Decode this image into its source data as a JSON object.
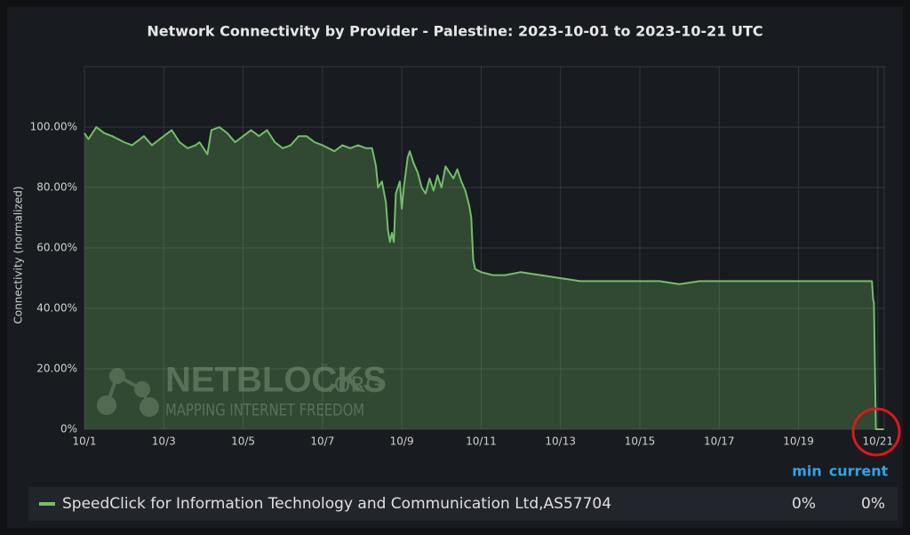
{
  "chart_data": {
    "type": "area",
    "title": "Network Connectivity by Provider - Palestine: 2023-10-01 to 2023-10-21 UTC",
    "y_label": "Connectivity (normalized)",
    "watermark": {
      "name": "NETBLOCKS",
      "suffix": ".ORG",
      "mark": "™",
      "tagline": "MAPPING INTERNET FREEDOM"
    },
    "xlim": [
      0,
      20.16
    ],
    "xticks": [
      {
        "value": 0,
        "label": "10/1"
      },
      {
        "value": 2,
        "label": "10/3"
      },
      {
        "value": 4,
        "label": "10/5"
      },
      {
        "value": 6,
        "label": "10/7"
      },
      {
        "value": 8,
        "label": "10/9"
      },
      {
        "value": 10,
        "label": "10/11"
      },
      {
        "value": 12,
        "label": "10/13"
      },
      {
        "value": 14,
        "label": "10/15"
      },
      {
        "value": 16,
        "label": "10/17"
      },
      {
        "value": 18,
        "label": "10/19"
      },
      {
        "value": 20,
        "label": "10/21"
      }
    ],
    "ylim": [
      0,
      120
    ],
    "yticks": [
      {
        "value": 0,
        "label": "0%"
      },
      {
        "value": 20,
        "label": "20.00%"
      },
      {
        "value": 40,
        "label": "40.00%"
      },
      {
        "value": 60,
        "label": "60.00%"
      },
      {
        "value": 80,
        "label": "80.00%"
      },
      {
        "value": 100,
        "label": "100.00%"
      }
    ],
    "grid": true,
    "legend_columns": [
      "min",
      "current"
    ],
    "series": [
      {
        "name": "SpeedClick for Information Technology and Communication Ltd,AS57704",
        "color": "#73bf69",
        "legend_values": [
          {
            "value": 0,
            "label": "0%"
          },
          {
            "value": 0,
            "label": "0%"
          }
        ],
        "x": [
          0,
          0.1,
          0.3,
          0.5,
          0.7,
          1.0,
          1.2,
          1.5,
          1.7,
          1.9,
          2.2,
          2.4,
          2.6,
          2.8,
          2.9,
          3.1,
          3.2,
          3.4,
          3.6,
          3.8,
          4.0,
          4.2,
          4.4,
          4.6,
          4.8,
          5.0,
          5.2,
          5.4,
          5.6,
          5.8,
          6.0,
          6.3,
          6.5,
          6.7,
          6.9,
          7.1,
          7.25,
          7.35,
          7.4,
          7.5,
          7.6,
          7.65,
          7.7,
          7.75,
          7.8,
          7.85,
          7.95,
          8.0,
          8.05,
          8.15,
          8.2,
          8.3,
          8.4,
          8.5,
          8.6,
          8.7,
          8.8,
          8.9,
          9.0,
          9.1,
          9.2,
          9.3,
          9.4,
          9.5,
          9.6,
          9.7,
          9.75,
          9.8,
          9.85,
          10.0,
          10.3,
          10.6,
          11,
          11.5,
          12,
          12.5,
          13,
          13.5,
          14,
          14.5,
          15,
          15.5,
          16,
          16.5,
          17,
          17.5,
          18,
          18.5,
          19,
          19.6,
          19.85,
          19.88,
          19.9,
          19.95,
          20.15
        ],
        "values": [
          98,
          96,
          100,
          98,
          97,
          95,
          94,
          97,
          94,
          96,
          99,
          95,
          93,
          94,
          95,
          91,
          99,
          100,
          98,
          95,
          97,
          99,
          97,
          99,
          95,
          93,
          94,
          97,
          97,
          95,
          94,
          92,
          94,
          93,
          94,
          93,
          93,
          87,
          80,
          82,
          75,
          66,
          62,
          65,
          62,
          78,
          82,
          73,
          80,
          90,
          92,
          88,
          85,
          80,
          78,
          83,
          79,
          84,
          80,
          87,
          85,
          83,
          86,
          82,
          79,
          74,
          70,
          56,
          53,
          52,
          51,
          51,
          52,
          51,
          50,
          49,
          49,
          49,
          49,
          49,
          48,
          49,
          49,
          49,
          49,
          49,
          49,
          49,
          49,
          49,
          49,
          43,
          42,
          0,
          0
        ]
      }
    ]
  }
}
